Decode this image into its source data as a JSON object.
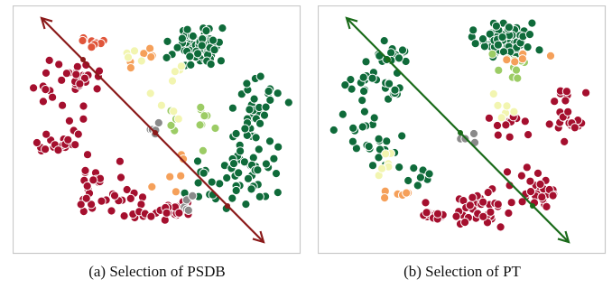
{
  "figure": {
    "panels": [
      {
        "id": "a",
        "caption": "(a) Selection of PSDB",
        "arrow_color": "#8b1a1a",
        "arrow_label": "selection direction toward PSDB cluster"
      },
      {
        "id": "b",
        "caption": "(b) Selection of PT",
        "arrow_color": "#1a6b1a",
        "arrow_label": "selection direction toward PT cluster"
      }
    ],
    "colors": {
      "red": "#a50f2e",
      "dark_green": "#0f6b3a",
      "light_green": "#9ccc65",
      "pale_yellow": "#f2f5b0",
      "orange": "#f5a05a",
      "red_orange": "#e0553a",
      "gray": "#8a8a8a"
    }
  }
}
